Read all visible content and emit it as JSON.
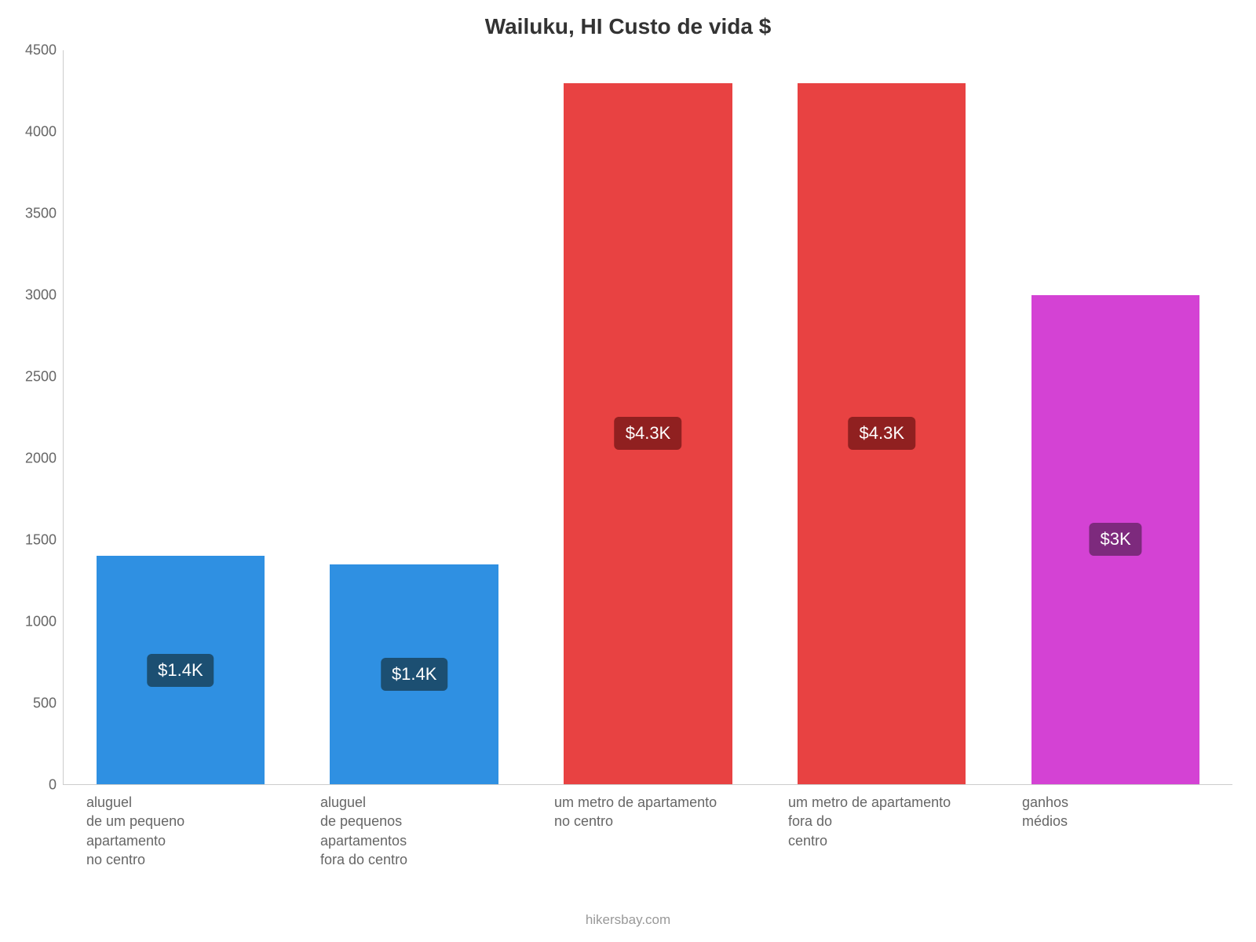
{
  "chart": {
    "type": "bar",
    "title": "Wailuku, HI Custo de vida $",
    "title_fontsize": 28,
    "title_color": "#333333",
    "background_color": "#ffffff",
    "axis_line_color": "#cccccc",
    "ylim": [
      0,
      4500
    ],
    "ytick_step": 500,
    "yticks": [
      0,
      500,
      1000,
      1500,
      2000,
      2500,
      3000,
      3500,
      4000,
      4500
    ],
    "ytick_labels": [
      "0",
      "500",
      "1000",
      "1500",
      "2000",
      "2500",
      "3000",
      "3500",
      "4000",
      "4500"
    ],
    "ytick_fontsize": 18,
    "ytick_color": "#666666",
    "xlabel_fontsize": 18,
    "xlabel_color": "#666666",
    "bar_width": 0.72,
    "value_label_fontsize": 22,
    "bars": [
      {
        "category": "aluguel\nde um pequeno\napartamento\nno centro",
        "value": 1400,
        "value_label": "$1.4K",
        "bar_color": "#2f90e2",
        "label_bg": "#1c4f72",
        "label_text_color": "#ffffff"
      },
      {
        "category": "aluguel\nde pequenos\napartamentos\nfora do centro",
        "value": 1350,
        "value_label": "$1.4K",
        "bar_color": "#2f90e2",
        "label_bg": "#1c4f72",
        "label_text_color": "#ffffff"
      },
      {
        "category": "um metro de apartamento\nno centro",
        "value": 4300,
        "value_label": "$4.3K",
        "bar_color": "#e84242",
        "label_bg": "#902020",
        "label_text_color": "#ffffff"
      },
      {
        "category": "um metro de apartamento\nfora do\ncentro",
        "value": 4300,
        "value_label": "$4.3K",
        "bar_color": "#e84242",
        "label_bg": "#902020",
        "label_text_color": "#ffffff"
      },
      {
        "category": "ganhos\nmédios",
        "value": 3000,
        "value_label": "$3K",
        "bar_color": "#d442d4",
        "label_bg": "#7d2a7d",
        "label_text_color": "#ffffff"
      }
    ],
    "footer": "hikersbay.com",
    "footer_fontsize": 17,
    "footer_color": "#999999"
  }
}
